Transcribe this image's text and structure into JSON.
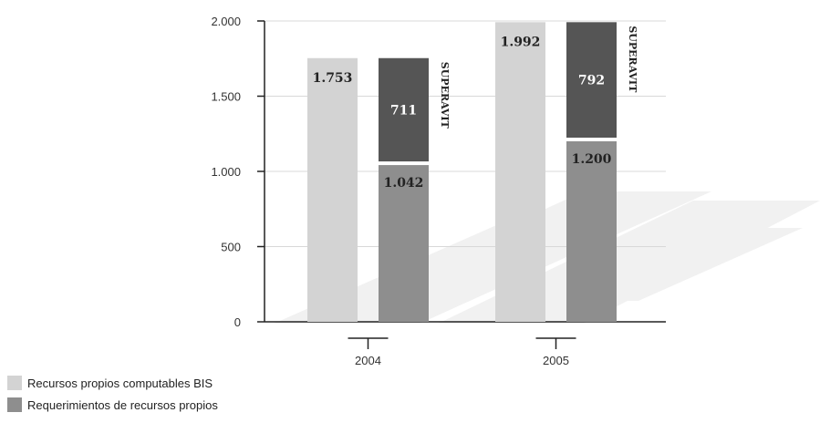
{
  "chart_data": {
    "type": "bar",
    "stacked_group": true,
    "categories": [
      "2004",
      "2005"
    ],
    "ylim": [
      0,
      2000
    ],
    "yticks": [
      0,
      500,
      1000,
      1500,
      2000
    ],
    "ytick_labels": [
      "0",
      "500",
      "1.000",
      "1.500",
      "2.000"
    ],
    "series": [
      {
        "name": "Recursos propios computables BIS",
        "values": [
          1753,
          1992
        ],
        "labels": [
          "1.753",
          "1.992"
        ],
        "color": "#d3d3d3"
      },
      {
        "name": "Requerimientos de recursos propios",
        "values": [
          1042,
          1200
        ],
        "labels": [
          "1.042",
          "1.200"
        ],
        "color": "#8e8e8e"
      }
    ],
    "surplus": {
      "text": "SUPERAVIT",
      "values": [
        711,
        792
      ],
      "labels": [
        "711",
        "792"
      ],
      "color": "#555555"
    },
    "grid": true
  }
}
